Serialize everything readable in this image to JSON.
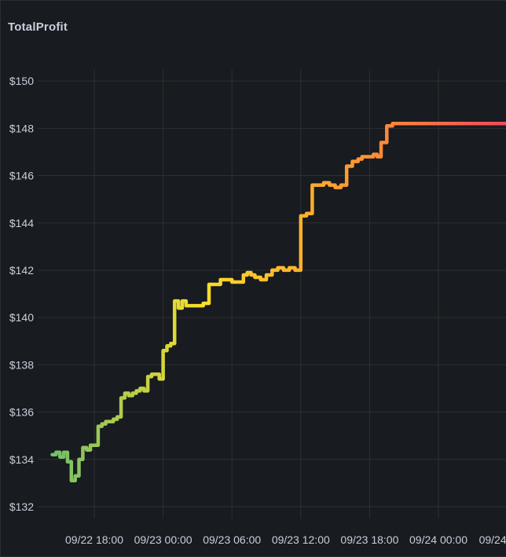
{
  "panel": {
    "title": "TotalProfit"
  },
  "chart_data": {
    "type": "line",
    "title": "TotalProfit",
    "xlabel": "",
    "ylabel": "",
    "x_tick_labels": [
      "09/22 18:00",
      "09/23 00:00",
      "09/23 06:00",
      "09/23 12:00",
      "09/23 18:00",
      "09/24 00:00",
      "09/24"
    ],
    "y_tick_labels": [
      "$132",
      "$134",
      "$136",
      "$138",
      "$140",
      "$142",
      "$144",
      "$146",
      "$148",
      "$150"
    ],
    "y_ticks": [
      132,
      134,
      136,
      138,
      140,
      142,
      144,
      146,
      148,
      150
    ],
    "ylim": [
      131.5,
      151.5
    ],
    "grid": true,
    "legend": "none",
    "line_gradient": [
      "#73bf69",
      "#fade2a",
      "#ff9830",
      "#f2495c"
    ],
    "series": [
      {
        "x": [
          "09/22 14:20",
          "09/22 14:40",
          "09/22 15:00",
          "09/22 15:20",
          "09/22 15:40",
          "09/22 16:00",
          "09/22 16:20",
          "09/22 16:40",
          "09/22 17:00",
          "09/22 17:20",
          "09/22 17:40",
          "09/22 18:00",
          "09/22 18:20",
          "09/22 18:40",
          "09/22 19:00",
          "09/22 19:20",
          "09/22 19:40",
          "09/22 20:00",
          "09/22 20:20",
          "09/22 20:40",
          "09/22 21:00",
          "09/22 21:20",
          "09/22 21:40",
          "09/22 22:00",
          "09/22 22:20",
          "09/22 22:40",
          "09/22 23:00",
          "09/22 23:20",
          "09/22 23:40",
          "09/23 00:00",
          "09/23 00:20",
          "09/23 00:40",
          "09/23 01:00",
          "09/23 01:20",
          "09/23 01:40",
          "09/23 02:00",
          "09/23 02:20",
          "09/23 02:40",
          "09/23 03:00",
          "09/23 03:30",
          "09/23 04:00",
          "09/23 04:30",
          "09/23 05:00",
          "09/23 05:30",
          "09/23 06:00",
          "09/23 06:20",
          "09/23 06:40",
          "09/23 07:00",
          "09/23 07:20",
          "09/23 07:40",
          "09/23 08:00",
          "09/23 08:30",
          "09/23 09:00",
          "09/23 09:30",
          "09/23 10:00",
          "09/23 10:30",
          "09/23 11:00",
          "09/23 11:30",
          "09/23 12:00",
          "09/23 12:30",
          "09/23 13:00",
          "09/23 13:30",
          "09/23 14:00",
          "09/23 14:30",
          "09/23 15:00",
          "09/23 15:30",
          "09/23 16:00",
          "09/23 16:30",
          "09/23 17:00",
          "09/23 17:20",
          "09/23 17:40",
          "09/23 18:00",
          "09/23 18:20",
          "09/23 18:40",
          "09/23 19:00",
          "09/23 19:30",
          "09/23 20:00",
          "09/23 20:30",
          "09/23 21:00",
          "09/23 21:30",
          "09/23 22:00",
          "09/23 22:30",
          "09/23 23:00",
          "09/23 23:20",
          "09/23 23:40",
          "09/24 00:00",
          "09/24 00:30",
          "09/24 01:00",
          "09/24 01:30",
          "09/24 02:00",
          "09/24 02:30",
          "09/24 03:00",
          "09/24 03:30",
          "09/24 03:50",
          "09/24 04:00",
          "09/24 04:20"
        ],
        "y": [
          134.2,
          134.3,
          134.1,
          134.3,
          133.9,
          133.1,
          133.3,
          134.0,
          134.5,
          134.4,
          134.6,
          134.6,
          135.4,
          135.5,
          135.6,
          135.6,
          135.7,
          135.8,
          136.6,
          136.8,
          136.7,
          136.8,
          136.9,
          137.0,
          136.9,
          137.5,
          137.6,
          137.6,
          137.4,
          138.6,
          138.8,
          138.9,
          140.7,
          140.4,
          140.7,
          140.5,
          140.5,
          140.5,
          140.5,
          140.6,
          141.4,
          141.4,
          141.6,
          141.6,
          141.5,
          141.5,
          141.5,
          141.8,
          141.9,
          141.8,
          141.7,
          141.6,
          141.8,
          142.0,
          142.1,
          142.0,
          142.1,
          142.0,
          144.3,
          144.4,
          145.6,
          145.6,
          145.7,
          145.6,
          145.5,
          145.6,
          146.4,
          146.6,
          146.7,
          146.8,
          146.8,
          146.8,
          146.9,
          146.8,
          147.4,
          148.1,
          148.2,
          148.2,
          148.2,
          148.2,
          148.2,
          148.2,
          148.2,
          148.2,
          148.2,
          148.2,
          148.2,
          148.2,
          148.2,
          148.2,
          148.2,
          148.2,
          148.2,
          148.2,
          148.2,
          148.2
        ]
      }
    ]
  }
}
